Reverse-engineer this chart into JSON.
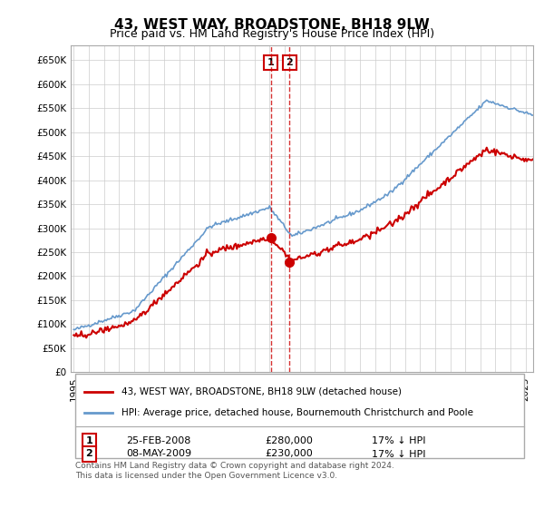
{
  "title": "43, WEST WAY, BROADSTONE, BH18 9LW",
  "subtitle": "Price paid vs. HM Land Registry's House Price Index (HPI)",
  "ylim": [
    0,
    680000
  ],
  "yticks": [
    0,
    50000,
    100000,
    150000,
    200000,
    250000,
    300000,
    350000,
    400000,
    450000,
    500000,
    550000,
    600000,
    650000
  ],
  "legend_property": "43, WEST WAY, BROADSTONE, BH18 9LW (detached house)",
  "legend_hpi": "HPI: Average price, detached house, Bournemouth Christchurch and Poole",
  "transaction1_date": "25-FEB-2008",
  "transaction1_price": "£280,000",
  "transaction1_hpi": "17% ↓ HPI",
  "transaction2_date": "08-MAY-2009",
  "transaction2_price": "£230,000",
  "transaction2_hpi": "17% ↓ HPI",
  "footer": "Contains HM Land Registry data © Crown copyright and database right 2024.\nThis data is licensed under the Open Government Licence v3.0.",
  "property_color": "#cc0000",
  "hpi_color": "#6699cc",
  "marker_color": "#cc0000",
  "dashed_line_color": "#cc0000",
  "background_color": "#ffffff",
  "grid_color": "#cccccc",
  "t1": 2008.083,
  "t2": 2009.333,
  "p1": 280000,
  "p2": 230000
}
